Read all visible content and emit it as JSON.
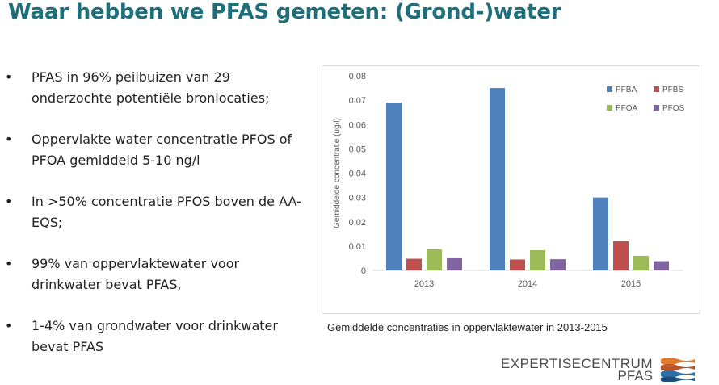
{
  "slide": {
    "title": "Waar hebben we PFAS gemeten: (Grond-)water",
    "bullets": [
      "PFAS in 96% peilbuizen van 29 onderzochte potentiële bronlocaties;",
      "Oppervlakte water concentratie PFOS of PFOA gemiddeld 5-10 ng/l",
      "In >50% concentratie PFOS boven de AA-EQS;",
      "99% van oppervlaktewater voor drinkwater bevat PFAS,",
      "1-4% van grondwater voor drinkwater bevat PFAS"
    ],
    "bullet_symbol": "•",
    "caption": "Gemiddelde concentraties in oppervlaktewater in 2013-2015",
    "logo": {
      "line1": "EXPERTISECENTRUM",
      "line2": "PFAS"
    }
  },
  "chart_data": {
    "type": "bar",
    "categories": [
      "2013",
      "2014",
      "2015"
    ],
    "series": [
      {
        "name": "PFBA",
        "color": "#4f81bd",
        "values": [
          0.069,
          0.075,
          0.03
        ]
      },
      {
        "name": "PFBS",
        "color": "#c0504d",
        "values": [
          0.0048,
          0.0045,
          0.012
        ]
      },
      {
        "name": "PFOA",
        "color": "#9bbb59",
        "values": [
          0.0087,
          0.0083,
          0.006
        ]
      },
      {
        "name": "PFOS",
        "color": "#8064a2",
        "values": [
          0.005,
          0.0046,
          0.0038
        ]
      }
    ],
    "ylabel": "Gemiddelde concentratie (ug/l)",
    "ylim": [
      0,
      0.08
    ],
    "yticks": [
      "0",
      "0.01",
      "0.02",
      "0.03",
      "0.04",
      "0.05",
      "0.06",
      "0.07",
      "0.08"
    ],
    "grid": false,
    "legend_position": "top-right"
  }
}
